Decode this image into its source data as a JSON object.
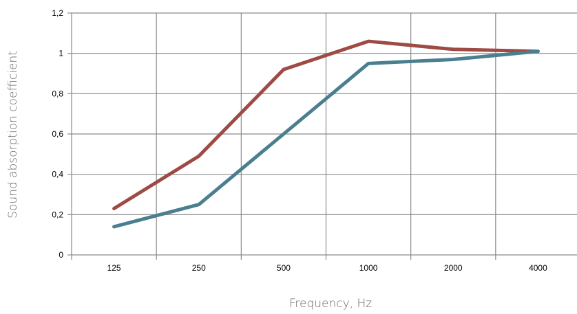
{
  "chart_data": {
    "type": "line",
    "title": "",
    "xlabel": "Frequency, Hz",
    "ylabel": "Sound absorption coefficient",
    "categories": [
      "125",
      "250",
      "500",
      "1000",
      "2000",
      "4000"
    ],
    "ylim": [
      0,
      1.2
    ],
    "yticks": [
      {
        "value": 0,
        "label": "0"
      },
      {
        "value": 0.2,
        "label": "0,2"
      },
      {
        "value": 0.4,
        "label": "0,4"
      },
      {
        "value": 0.6,
        "label": "0,6"
      },
      {
        "value": 0.8,
        "label": "0,8"
      },
      {
        "value": 1.0,
        "label": "1"
      },
      {
        "value": 1.2,
        "label": "1,2"
      }
    ],
    "grid": true,
    "series": [
      {
        "color": "#9e4a45",
        "values": [
          0.23,
          0.49,
          0.92,
          1.06,
          1.02,
          1.01
        ]
      },
      {
        "color": "#4a7f8f",
        "values": [
          0.14,
          0.25,
          0.6,
          0.95,
          0.97,
          1.01
        ]
      }
    ]
  }
}
